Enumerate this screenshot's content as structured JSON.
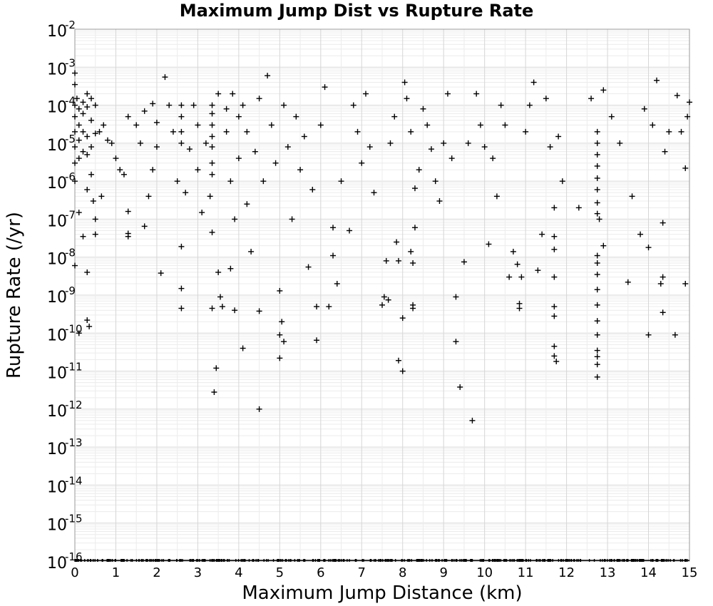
{
  "chart_data": {
    "type": "scatter",
    "title": "Maximum Jump Dist vs Rupture Rate",
    "xlabel": "Maximum Jump Distance (km)",
    "ylabel": "Rupture Rate (/yr)",
    "xlim": [
      0,
      15
    ],
    "ylim": [
      1e-16,
      0.01
    ],
    "yscale": "log",
    "grid": true,
    "marker": "+",
    "x_ticks": [
      "0",
      "1",
      "2",
      "3",
      "4",
      "5",
      "6",
      "7",
      "8",
      "9",
      "10",
      "11",
      "12",
      "13",
      "14",
      "15"
    ],
    "y_ticks": [
      {
        "base": "10",
        "exp": "-2"
      },
      {
        "base": "10",
        "exp": "-3"
      },
      {
        "base": "10",
        "exp": "-4"
      },
      {
        "base": "10",
        "exp": "-5"
      },
      {
        "base": "10",
        "exp": "-6"
      },
      {
        "base": "10",
        "exp": "-7"
      },
      {
        "base": "10",
        "exp": "-8"
      },
      {
        "base": "10",
        "exp": "-9"
      },
      {
        "base": "10",
        "exp": "-10"
      },
      {
        "base": "10",
        "exp": "-11"
      },
      {
        "base": "10",
        "exp": "-12"
      },
      {
        "base": "10",
        "exp": "-13"
      },
      {
        "base": "10",
        "exp": "-14"
      },
      {
        "base": "10",
        "exp": "-15"
      },
      {
        "base": "10",
        "exp": "-16"
      }
    ],
    "points": [
      [
        0.0,
        0.0007
      ],
      [
        0.0,
        0.00035
      ],
      [
        0.0,
        0.0001
      ],
      [
        0.0,
        5e-05
      ],
      [
        0.0,
        2e-05
      ],
      [
        0.0,
        8e-06
      ],
      [
        0.0,
        3e-06
      ],
      [
        0.0,
        1e-06
      ],
      [
        0.0,
        6e-09
      ],
      [
        0.05,
        0.00015
      ],
      [
        0.1,
        8e-05
      ],
      [
        0.1,
        3e-05
      ],
      [
        0.1,
        1.2e-05
      ],
      [
        0.1,
        4e-06
      ],
      [
        0.1,
        1.5e-07
      ],
      [
        0.1,
        1e-10
      ],
      [
        0.2,
        0.00012
      ],
      [
        0.2,
        6e-05
      ],
      [
        0.2,
        2e-05
      ],
      [
        0.2,
        6e-06
      ],
      [
        0.2,
        3.5e-08
      ],
      [
        0.3,
        0.0002
      ],
      [
        0.3,
        9e-05
      ],
      [
        0.3,
        1.5e-05
      ],
      [
        0.3,
        5e-06
      ],
      [
        0.3,
        6e-07
      ],
      [
        0.3,
        4e-09
      ],
      [
        0.3,
        2.2e-10
      ],
      [
        0.35,
        1.5e-10
      ],
      [
        0.4,
        0.00015
      ],
      [
        0.4,
        4e-05
      ],
      [
        0.4,
        8e-06
      ],
      [
        0.4,
        1.5e-06
      ],
      [
        0.45,
        3e-07
      ],
      [
        0.5,
        0.0001
      ],
      [
        0.5,
        1.8e-05
      ],
      [
        0.5,
        1e-07
      ],
      [
        0.5,
        4e-08
      ],
      [
        0.6,
        2e-05
      ],
      [
        0.65,
        4e-07
      ],
      [
        0.7,
        3e-05
      ],
      [
        0.8,
        1.2e-05
      ],
      [
        0.9,
        1e-05
      ],
      [
        1.0,
        4e-06
      ],
      [
        1.1,
        2e-06
      ],
      [
        1.2,
        1.5e-06
      ],
      [
        1.3,
        5e-05
      ],
      [
        1.3,
        1.6e-07
      ],
      [
        1.3,
        3.5e-08
      ],
      [
        1.3,
        4.2e-08
      ],
      [
        1.5,
        3e-05
      ],
      [
        1.6,
        1e-05
      ],
      [
        1.7,
        7e-05
      ],
      [
        1.7,
        6.5e-08
      ],
      [
        1.8,
        4e-07
      ],
      [
        1.9,
        2e-06
      ],
      [
        1.9,
        0.00011
      ],
      [
        2.0,
        3.5e-05
      ],
      [
        2.0,
        8e-06
      ],
      [
        2.1,
        3.8e-09
      ],
      [
        2.2,
        0.00055
      ],
      [
        2.3,
        0.0001
      ],
      [
        2.4,
        2e-05
      ],
      [
        2.5,
        1e-06
      ],
      [
        2.6,
        0.0001
      ],
      [
        2.6,
        5e-05
      ],
      [
        2.6,
        2e-05
      ],
      [
        2.6,
        1e-05
      ],
      [
        2.6,
        1.9e-08
      ],
      [
        2.6,
        1.5e-09
      ],
      [
        2.6,
        4.5e-10
      ],
      [
        2.7,
        5e-07
      ],
      [
        2.8,
        7e-06
      ],
      [
        2.9,
        0.0001
      ],
      [
        3.0,
        2e-06
      ],
      [
        3.0,
        3e-05
      ],
      [
        3.1,
        1.5e-07
      ],
      [
        3.2,
        1e-05
      ],
      [
        3.3,
        4e-07
      ],
      [
        3.35,
        0.0001
      ],
      [
        3.35,
        6e-05
      ],
      [
        3.35,
        3e-05
      ],
      [
        3.35,
        1.5e-05
      ],
      [
        3.35,
        8e-06
      ],
      [
        3.35,
        3e-06
      ],
      [
        3.35,
        1.5e-06
      ],
      [
        3.35,
        4.5e-08
      ],
      [
        3.35,
        4.5e-10
      ],
      [
        3.4,
        2.8e-12
      ],
      [
        3.45,
        1.2e-11
      ],
      [
        3.5,
        4e-09
      ],
      [
        3.5,
        0.0002
      ],
      [
        3.55,
        9e-10
      ],
      [
        3.6,
        5e-10
      ],
      [
        3.7,
        8e-05
      ],
      [
        3.7,
        2e-05
      ],
      [
        3.8,
        5e-09
      ],
      [
        3.8,
        1e-06
      ],
      [
        3.85,
        0.0002
      ],
      [
        3.9,
        4e-10
      ],
      [
        3.9,
        1e-07
      ],
      [
        4.0,
        5e-05
      ],
      [
        4.0,
        4e-06
      ],
      [
        4.1,
        0.0001
      ],
      [
        4.1,
        4e-11
      ],
      [
        4.2,
        2e-05
      ],
      [
        4.2,
        2.5e-07
      ],
      [
        4.3,
        1.4e-08
      ],
      [
        4.4,
        6e-06
      ],
      [
        4.5,
        0.00015
      ],
      [
        4.5,
        3.8e-10
      ],
      [
        4.5,
        1e-12
      ],
      [
        4.6,
        1e-06
      ],
      [
        4.7,
        0.0006
      ],
      [
        4.8,
        3e-05
      ],
      [
        4.9,
        3e-06
      ],
      [
        5.0,
        1.3e-09
      ],
      [
        5.0,
        9e-11
      ],
      [
        5.0,
        2.2e-11
      ],
      [
        5.05,
        2e-10
      ],
      [
        5.1,
        6e-11
      ],
      [
        5.1,
        0.0001
      ],
      [
        5.2,
        8e-06
      ],
      [
        5.3,
        1e-07
      ],
      [
        5.4,
        5e-05
      ],
      [
        5.5,
        2e-06
      ],
      [
        5.6,
        1.5e-05
      ],
      [
        5.7,
        5.5e-09
      ],
      [
        5.8,
        6e-07
      ],
      [
        5.9,
        5e-10
      ],
      [
        5.9,
        6.5e-11
      ],
      [
        6.0,
        3e-05
      ],
      [
        6.1,
        0.0003
      ],
      [
        6.2,
        5e-10
      ],
      [
        6.3,
        6e-08
      ],
      [
        6.3,
        1.1e-08
      ],
      [
        6.4,
        2e-09
      ],
      [
        6.5,
        1e-06
      ],
      [
        6.7,
        5e-08
      ],
      [
        6.8,
        0.0001
      ],
      [
        6.9,
        2e-05
      ],
      [
        7.0,
        3e-06
      ],
      [
        7.1,
        0.0002
      ],
      [
        7.2,
        8e-06
      ],
      [
        7.3,
        5e-07
      ],
      [
        7.5,
        5.5e-10
      ],
      [
        7.55,
        9e-10
      ],
      [
        7.6,
        8e-09
      ],
      [
        7.65,
        7.5e-10
      ],
      [
        7.7,
        1e-05
      ],
      [
        7.8,
        5e-05
      ],
      [
        7.85,
        2.5e-08
      ],
      [
        7.9,
        8e-09
      ],
      [
        7.9,
        1.9e-11
      ],
      [
        8.0,
        2.5e-10
      ],
      [
        8.0,
        1e-11
      ],
      [
        8.05,
        0.0004
      ],
      [
        8.1,
        0.00015
      ],
      [
        8.2,
        2e-05
      ],
      [
        8.2,
        1.4e-08
      ],
      [
        8.25,
        7e-09
      ],
      [
        8.25,
        5.5e-10
      ],
      [
        8.25,
        4.5e-10
      ],
      [
        8.3,
        6e-08
      ],
      [
        8.3,
        6.5e-07
      ],
      [
        8.4,
        2e-06
      ],
      [
        8.5,
        8e-05
      ],
      [
        8.6,
        3e-05
      ],
      [
        8.7,
        7e-06
      ],
      [
        8.8,
        1e-06
      ],
      [
        8.9,
        3e-07
      ],
      [
        9.0,
        1e-05
      ],
      [
        9.1,
        0.0002
      ],
      [
        9.2,
        4e-06
      ],
      [
        9.3,
        9e-10
      ],
      [
        9.3,
        6e-11
      ],
      [
        9.4,
        3.8e-12
      ],
      [
        9.5,
        7.5e-09
      ],
      [
        9.6,
        1e-05
      ],
      [
        9.7,
        5e-13
      ],
      [
        9.8,
        0.0002
      ],
      [
        9.9,
        3e-05
      ],
      [
        10.0,
        8e-06
      ],
      [
        10.1,
        2.2e-08
      ],
      [
        10.2,
        4e-06
      ],
      [
        10.3,
        4e-07
      ],
      [
        10.4,
        0.0001
      ],
      [
        10.5,
        3e-05
      ],
      [
        10.6,
        3e-09
      ],
      [
        10.7,
        1.4e-08
      ],
      [
        10.8,
        6.5e-09
      ],
      [
        10.85,
        6e-10
      ],
      [
        10.85,
        4.5e-10
      ],
      [
        10.9,
        3e-09
      ],
      [
        11.0,
        2e-05
      ],
      [
        11.1,
        0.0001
      ],
      [
        11.2,
        0.0004
      ],
      [
        11.3,
        4.5e-09
      ],
      [
        11.4,
        4e-08
      ],
      [
        11.5,
        0.00015
      ],
      [
        11.6,
        8e-06
      ],
      [
        11.7,
        2e-07
      ],
      [
        11.7,
        3.5e-08
      ],
      [
        11.7,
        1.6e-08
      ],
      [
        11.7,
        3e-09
      ],
      [
        11.7,
        5e-10
      ],
      [
        11.7,
        2.8e-10
      ],
      [
        11.7,
        4.5e-11
      ],
      [
        11.7,
        2.5e-11
      ],
      [
        11.75,
        1.8e-11
      ],
      [
        11.8,
        1.5e-05
      ],
      [
        11.9,
        1e-06
      ],
      [
        12.3,
        2e-07
      ],
      [
        12.6,
        0.00015
      ],
      [
        12.75,
        2e-05
      ],
      [
        12.75,
        1e-05
      ],
      [
        12.75,
        5e-06
      ],
      [
        12.75,
        2.5e-06
      ],
      [
        12.75,
        1.2e-06
      ],
      [
        12.75,
        6e-07
      ],
      [
        12.75,
        2.7e-07
      ],
      [
        12.75,
        1.4e-07
      ],
      [
        12.75,
        1.1e-08
      ],
      [
        12.75,
        7e-09
      ],
      [
        12.75,
        3.5e-09
      ],
      [
        12.75,
        1.4e-09
      ],
      [
        12.75,
        5.5e-10
      ],
      [
        12.75,
        2.1e-10
      ],
      [
        12.75,
        9e-11
      ],
      [
        12.75,
        3.5e-11
      ],
      [
        12.75,
        2.4e-11
      ],
      [
        12.75,
        1.5e-11
      ],
      [
        12.75,
        7e-12
      ],
      [
        12.8,
        1e-07
      ],
      [
        12.9,
        0.00025
      ],
      [
        12.9,
        2e-08
      ],
      [
        13.1,
        5e-05
      ],
      [
        13.3,
        1e-05
      ],
      [
        13.5,
        2.2e-09
      ],
      [
        13.6,
        4e-07
      ],
      [
        13.8,
        4e-08
      ],
      [
        13.9,
        8e-05
      ],
      [
        14.0,
        1.8e-08
      ],
      [
        14.0,
        9e-11
      ],
      [
        14.1,
        3e-05
      ],
      [
        14.2,
        0.00045
      ],
      [
        14.3,
        2e-09
      ],
      [
        14.35,
        3e-09
      ],
      [
        14.35,
        3.5e-10
      ],
      [
        14.35,
        8e-08
      ],
      [
        14.4,
        6e-06
      ],
      [
        14.5,
        2e-05
      ],
      [
        14.65,
        9e-11
      ],
      [
        14.7,
        0.00018
      ],
      [
        14.8,
        2e-05
      ],
      [
        14.9,
        2e-09
      ],
      [
        14.9,
        2.2e-06
      ],
      [
        14.95,
        5e-05
      ],
      [
        15.0,
        0.00012
      ]
    ]
  }
}
